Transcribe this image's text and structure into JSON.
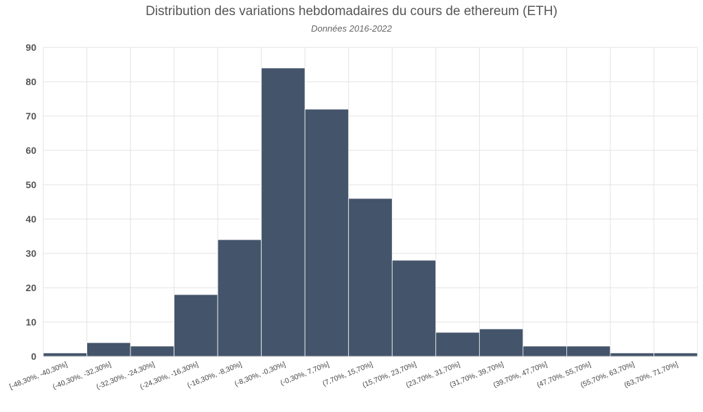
{
  "chart_data": {
    "type": "bar",
    "title": "Distribution des variations hebdomadaires du cours de ethereum (ETH)",
    "subtitle": "Données 2016-2022",
    "xlabel": "",
    "ylabel": "",
    "ylim": [
      0,
      90
    ],
    "yticks": [
      0,
      10,
      20,
      30,
      40,
      50,
      60,
      70,
      80,
      90
    ],
    "grid": true,
    "legend": "none",
    "bar_color": "#44546a",
    "categories": [
      "[-48,30%, -40,30%]",
      "(-40,30%, -32,30%]",
      "(-32,30%, -24,30%]",
      "(-24,30%, -16,30%]",
      "(-16,30%, -8,30%]",
      "(-8,30%, -0,30%]",
      "(-0,30%, 7,70%]",
      "(7,70%, 15,70%]",
      "(15,70%, 23,70%]",
      "(23,70%, 31,70%]",
      "(31,70%, 39,70%]",
      "(39,70%, 47,70%]",
      "(47,70%, 55,70%]",
      "(55,70%, 63,70%]",
      "(63,70%, 71,70%]"
    ],
    "values": [
      1,
      4,
      3,
      18,
      34,
      84,
      72,
      46,
      28,
      7,
      8,
      3,
      3,
      1,
      1
    ]
  }
}
